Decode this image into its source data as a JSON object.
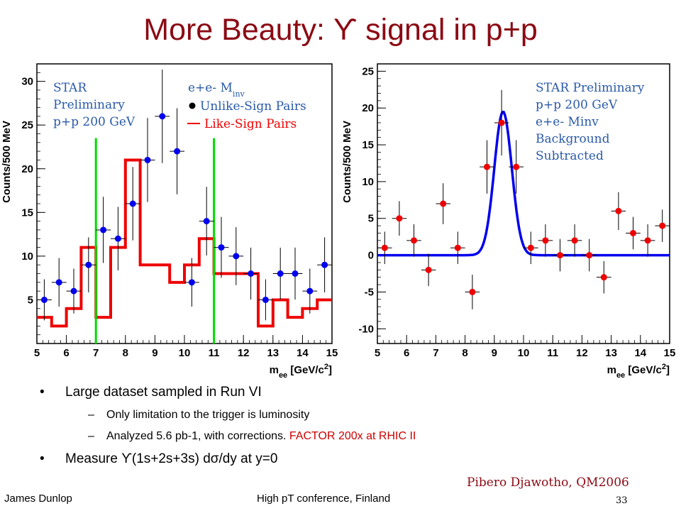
{
  "slide": {
    "title": "More Beauty: ϒ signal in p+p",
    "bullets": [
      {
        "level": 1,
        "text": "Large dataset sampled in Run VI"
      },
      {
        "level": 2,
        "text": "Only limitation to the trigger is luminosity"
      },
      {
        "level": 2,
        "text": "Analyzed 5.6 pb-1, with corrections.",
        "highlight": "FACTOR 200x at RHIC II"
      },
      {
        "level": 1,
        "text": "Measure ϒ(1s+2s+3s) dσ/dy at y=0"
      }
    ],
    "credit": "Pibero Djawotho, QM2006",
    "footer_left": "James Dunlop",
    "footer_mid": "High pT conference, Finland",
    "page_number": "33"
  },
  "chart_data": [
    {
      "type": "scatter",
      "xlabel": "m_ee [GeV/c^2]",
      "ylabel": "Counts/500 MeV",
      "xlim": [
        5,
        15
      ],
      "ylim": [
        0,
        32
      ],
      "xticks": [
        5,
        6,
        7,
        8,
        9,
        10,
        11,
        12,
        13,
        14,
        15
      ],
      "yticks": [
        5,
        10,
        15,
        20,
        25,
        30
      ],
      "annotations": [
        "STAR",
        "Preliminary",
        "p+p 200 GeV"
      ],
      "legend": {
        "title": "e+e- Minv",
        "items": [
          "Unlike-Sign Pairs",
          "Like-Sign Pairs"
        ]
      },
      "series": [
        {
          "name": "Unlike-Sign Pairs",
          "color": "#0000ee",
          "x": [
            5.25,
            5.75,
            6.25,
            6.75,
            7.25,
            7.75,
            8.25,
            8.75,
            9.25,
            9.75,
            10.25,
            10.75,
            11.25,
            11.75,
            12.25,
            12.75,
            13.25,
            13.75,
            14.25,
            14.75
          ],
          "y": [
            5,
            7,
            6,
            9,
            13,
            12,
            16,
            21,
            26,
            22,
            7,
            14,
            11,
            10,
            8,
            5,
            8,
            8,
            6,
            9
          ]
        },
        {
          "name": "Like-Sign Pairs",
          "color": "#ee0000",
          "style": "step",
          "x": [
            5.25,
            5.75,
            6.25,
            6.75,
            7.25,
            7.75,
            8.25,
            8.75,
            9.25,
            9.75,
            10.25,
            10.75,
            11.25,
            11.75,
            12.25,
            12.75,
            13.25,
            13.75,
            14.25,
            14.75
          ],
          "y": [
            3,
            2,
            4,
            11,
            3,
            11,
            21,
            9,
            9,
            7,
            9,
            12,
            8,
            8,
            8,
            2,
            5,
            3,
            4,
            5
          ]
        }
      ],
      "vertical_lines": {
        "color": "#00dd00",
        "x": [
          7,
          11
        ]
      }
    },
    {
      "type": "scatter",
      "xlabel": "m_ee [GeV/c^2]",
      "ylabel": "Counts/500 MeV",
      "xlim": [
        5,
        15
      ],
      "ylim": [
        -12,
        26
      ],
      "xticks": [
        5,
        6,
        7,
        8,
        9,
        10,
        11,
        12,
        13,
        14,
        15
      ],
      "yticks": [
        -10,
        -5,
        0,
        5,
        10,
        15,
        20,
        25
      ],
      "annotations": [
        "STAR Preliminary",
        "p+p 200 GeV",
        "e+e- Minv",
        "Background",
        "Subtracted"
      ],
      "series": [
        {
          "name": "data",
          "color": "#ee0000",
          "x": [
            5.25,
            5.75,
            6.25,
            6.75,
            7.25,
            7.75,
            8.25,
            8.75,
            9.25,
            9.75,
            10.25,
            10.75,
            11.25,
            11.75,
            12.25,
            12.75,
            13.25,
            13.75,
            14.25,
            14.75
          ],
          "y": [
            1,
            5,
            2,
            -2,
            7,
            1,
            -5,
            12,
            18,
            12,
            1,
            2,
            0,
            2,
            0,
            -3,
            6,
            3,
            2,
            4
          ]
        },
        {
          "name": "fit",
          "color": "#0000ee",
          "style": "gaussian",
          "mean": 9.3,
          "sigma": 0.3,
          "amplitude": 19.5,
          "baseline": 0
        }
      ]
    }
  ]
}
